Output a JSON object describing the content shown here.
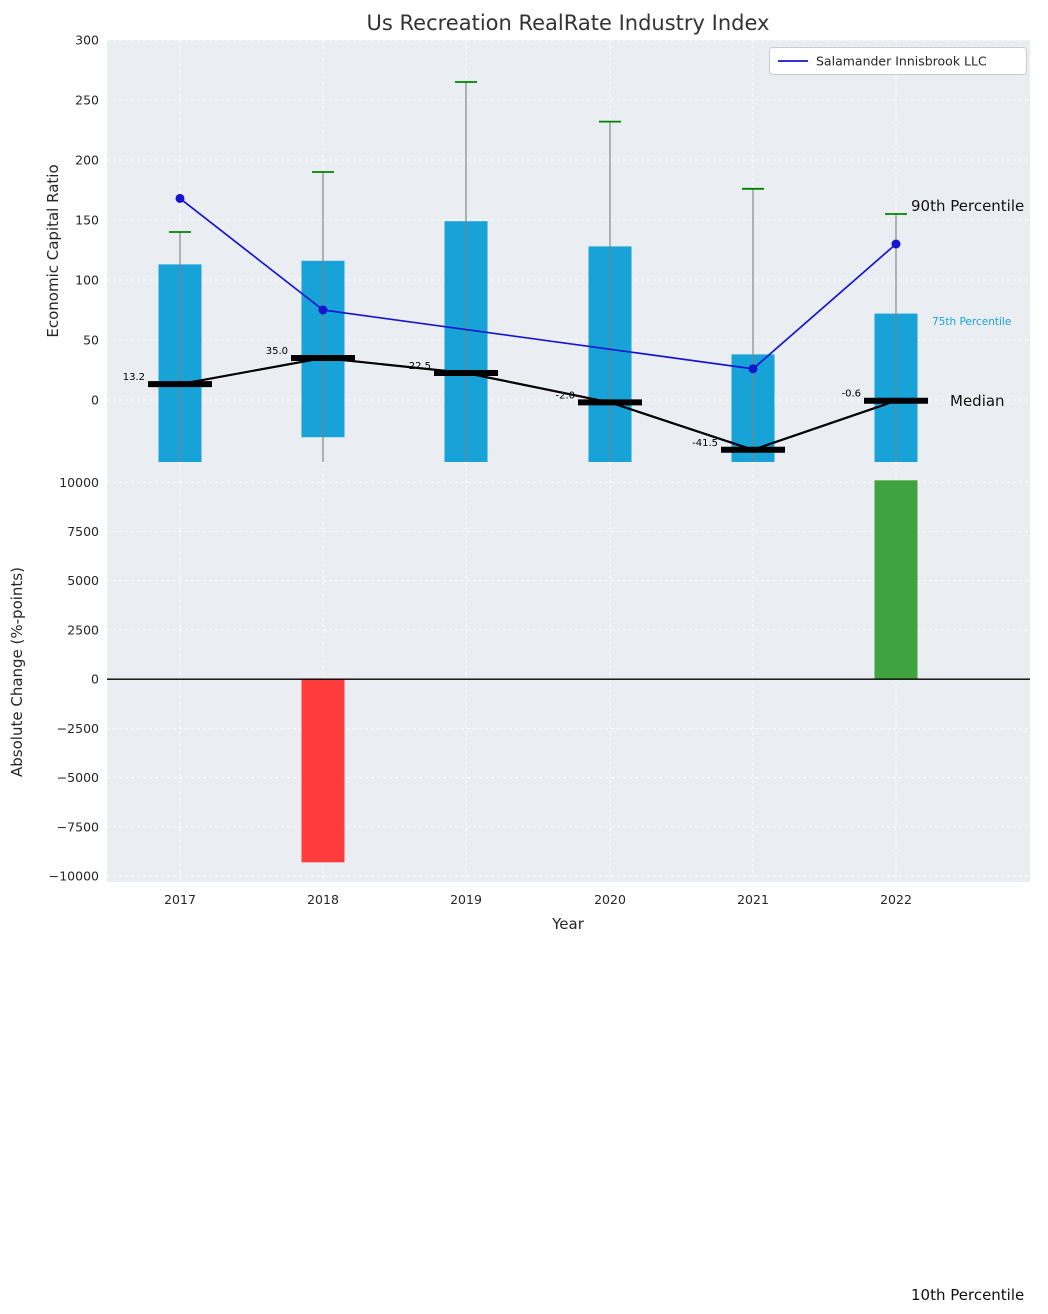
{
  "title": "Us Recreation RealRate Industry Index",
  "legend": {
    "series_label": "Salamander Innisbrook LLC"
  },
  "annotations": {
    "p90_label": "90th Percentile",
    "p75_label": "75th Percentile",
    "median_label": "Median",
    "p10_label": "10th Percentile"
  },
  "axes": {
    "x_label": "Year",
    "top_y_label": "Economic Capital Ratio",
    "bottom_y_label": "Absolute Change (%-points)"
  },
  "colors": {
    "box": "#17a3d8",
    "median": "#000000",
    "company_line": "#1515cf",
    "cap": "#008000",
    "whisker": "#808080",
    "bar_negative": "#ff3b3b",
    "bar_positive": "#3fa33f",
    "panel_bg": "#eaedf1",
    "grid": "#ffffff",
    "text": "#262626",
    "p75_text": "#17a3d8"
  },
  "chart_data": [
    {
      "type": "boxplot_line",
      "panel": "top",
      "title": "Us Recreation RealRate Industry Index",
      "ylabel": "Economic Capital Ratio",
      "ylim_visible": [
        -52,
        300
      ],
      "yticks": [
        0,
        50,
        100,
        150,
        200,
        250,
        300
      ],
      "categories": [
        "2017",
        "2018",
        "2019",
        "2020",
        "2021",
        "2022"
      ],
      "p90": [
        140,
        190,
        265,
        232,
        176,
        155
      ],
      "p75": [
        113,
        116,
        149,
        128,
        38,
        72
      ],
      "p25": [
        -60,
        -31,
        -60,
        -60,
        -60,
        -60
      ],
      "median": [
        13.2,
        35.0,
        22.5,
        -2.0,
        -41.5,
        -0.6
      ],
      "median_labels": [
        "13.2",
        "35.0",
        "22.5",
        "-2.0",
        "-41.5",
        "-0.6"
      ],
      "p10_note": "10th Percentile whiskers extend below visible range",
      "series": [
        {
          "name": "Salamander Innisbrook LLC",
          "values": [
            168,
            75,
            null,
            null,
            26,
            130
          ]
        }
      ],
      "legend_position": "upper right",
      "grid": true
    },
    {
      "type": "bar",
      "panel": "bottom",
      "xlabel": "Year",
      "ylabel": "Absolute Change (%-points)",
      "categories": [
        "2017",
        "2018",
        "2019",
        "2020",
        "2021",
        "2022"
      ],
      "values": [
        0,
        -9300,
        0,
        0,
        0,
        10100
      ],
      "ylim": [
        -10300,
        11030
      ],
      "yticks": [
        10000,
        7500,
        5000,
        2500,
        0,
        -2500,
        -5000,
        -7500,
        -10000
      ],
      "ytick_labels": [
        "10000",
        "7500",
        "5000",
        "2500",
        "0",
        "−2500",
        "−5000",
        "−7500",
        "−10000"
      ],
      "grid": true
    }
  ]
}
